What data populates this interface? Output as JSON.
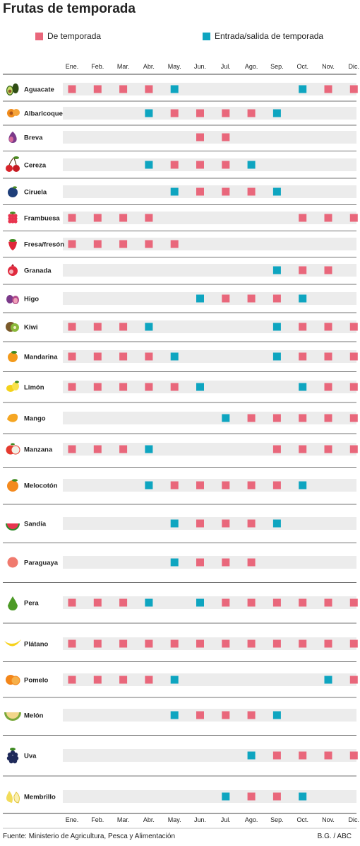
{
  "title": "Frutas de temporada",
  "legend": {
    "season_label": "De temporada",
    "transition_label": "Entrada/salida de temporada"
  },
  "colors": {
    "season": "#e9677b",
    "transition": "#0ea5c0",
    "row_band": "#ececec",
    "rule": "#444444"
  },
  "footer": {
    "source": "Fuente: Ministerio de Agricultura, Pesca y Alimentación",
    "credit": "B.G. / ABC"
  },
  "chart_data": {
    "type": "table",
    "title": "Frutas de temporada",
    "months": [
      "Ene.",
      "Feb.",
      "Mar.",
      "Abr.",
      "May.",
      "Jun.",
      "Jul.",
      "Ago.",
      "Sep.",
      "Oct.",
      "Nov.",
      "Dic."
    ],
    "legend_codes": {
      "S": "De temporada",
      "T": "Entrada/salida de temporada"
    },
    "rows": [
      {
        "fruit": "Aguacate",
        "icon": "avocado-icon",
        "months": [
          "S",
          "S",
          "S",
          "S",
          "T",
          "",
          "",
          "",
          "",
          "T",
          "S",
          "S"
        ]
      },
      {
        "fruit": "Albaricoque",
        "icon": "apricot-icon",
        "months": [
          "",
          "",
          "",
          "T",
          "S",
          "S",
          "S",
          "S",
          "T",
          "",
          "",
          ""
        ]
      },
      {
        "fruit": "Breva",
        "icon": "early-fig-icon",
        "months": [
          "",
          "",
          "",
          "",
          "",
          "S",
          "S",
          "",
          "",
          "",
          "",
          ""
        ]
      },
      {
        "fruit": "Cereza",
        "icon": "cherry-icon",
        "months": [
          "",
          "",
          "",
          "T",
          "S",
          "S",
          "S",
          "T",
          "",
          "",
          "",
          ""
        ]
      },
      {
        "fruit": "Ciruela",
        "icon": "plum-icon",
        "months": [
          "",
          "",
          "",
          "",
          "T",
          "S",
          "S",
          "S",
          "T",
          "",
          "",
          ""
        ]
      },
      {
        "fruit": "Frambuesa",
        "icon": "raspberry-icon",
        "months": [
          "S",
          "S",
          "S",
          "S",
          "",
          "",
          "",
          "",
          "",
          "S",
          "S",
          "S"
        ]
      },
      {
        "fruit": "Fresa/fresón",
        "icon": "strawberry-icon",
        "months": [
          "S",
          "S",
          "S",
          "S",
          "S",
          "",
          "",
          "",
          "",
          "",
          "",
          ""
        ]
      },
      {
        "fruit": "Granada",
        "icon": "pomegranate-icon",
        "months": [
          "",
          "",
          "",
          "",
          "",
          "",
          "",
          "",
          "T",
          "S",
          "S",
          ""
        ]
      },
      {
        "fruit": "Higo",
        "icon": "fig-icon",
        "months": [
          "",
          "",
          "",
          "",
          "",
          "T",
          "S",
          "S",
          "S",
          "T",
          "",
          ""
        ]
      },
      {
        "fruit": "Kiwi",
        "icon": "kiwi-icon",
        "months": [
          "S",
          "S",
          "S",
          "T",
          "",
          "",
          "",
          "",
          "T",
          "S",
          "S",
          "S"
        ]
      },
      {
        "fruit": "Mandarina",
        "icon": "mandarin-icon",
        "months": [
          "S",
          "S",
          "S",
          "S",
          "T",
          "",
          "",
          "",
          "T",
          "S",
          "S",
          "S"
        ]
      },
      {
        "fruit": "Limón",
        "icon": "lemon-icon",
        "months": [
          "S",
          "S",
          "S",
          "S",
          "S",
          "T",
          "",
          "",
          "",
          "T",
          "S",
          "S"
        ]
      },
      {
        "fruit": "Mango",
        "icon": "mango-icon",
        "months": [
          "",
          "",
          "",
          "",
          "",
          "",
          "T",
          "S",
          "S",
          "S",
          "S",
          "S"
        ]
      },
      {
        "fruit": "Manzana",
        "icon": "apple-icon",
        "months": [
          "S",
          "S",
          "S",
          "T",
          "",
          "",
          "",
          "",
          "S",
          "S",
          "S",
          "S"
        ]
      },
      {
        "fruit": "Melocotón",
        "icon": "peach-icon",
        "months": [
          "",
          "",
          "",
          "T",
          "S",
          "S",
          "S",
          "S",
          "S",
          "T",
          "",
          ""
        ]
      },
      {
        "fruit": "Sandía",
        "icon": "watermelon-icon",
        "months": [
          "",
          "",
          "",
          "",
          "T",
          "S",
          "S",
          "S",
          "T",
          "",
          "",
          ""
        ]
      },
      {
        "fruit": "Paraguaya",
        "icon": "flat-peach-icon",
        "months": [
          "",
          "",
          "",
          "",
          "T",
          "S",
          "S",
          "S",
          "",
          "",
          "",
          ""
        ]
      },
      {
        "fruit": "Pera",
        "icon": "pear-icon",
        "months": [
          "S",
          "S",
          "S",
          "T",
          "",
          "T",
          "S",
          "S",
          "S",
          "S",
          "S",
          "S"
        ]
      },
      {
        "fruit": "Plátano",
        "icon": "banana-icon",
        "months": [
          "S",
          "S",
          "S",
          "S",
          "S",
          "S",
          "S",
          "S",
          "S",
          "S",
          "S",
          "S"
        ]
      },
      {
        "fruit": "Pomelo",
        "icon": "grapefruit-icon",
        "months": [
          "S",
          "S",
          "S",
          "S",
          "T",
          "",
          "",
          "",
          "",
          "",
          "T",
          "S"
        ]
      },
      {
        "fruit": "Melón",
        "icon": "melon-icon",
        "months": [
          "",
          "",
          "",
          "",
          "T",
          "S",
          "S",
          "S",
          "T",
          "",
          "",
          ""
        ]
      },
      {
        "fruit": "Uva",
        "icon": "grape-icon",
        "months": [
          "",
          "",
          "",
          "",
          "",
          "",
          "",
          "T",
          "S",
          "S",
          "S",
          "S"
        ]
      },
      {
        "fruit": "Membrillo",
        "icon": "quince-icon",
        "months": [
          "",
          "",
          "",
          "",
          "",
          "",
          "T",
          "S",
          "S",
          "T",
          "",
          ""
        ]
      }
    ]
  }
}
